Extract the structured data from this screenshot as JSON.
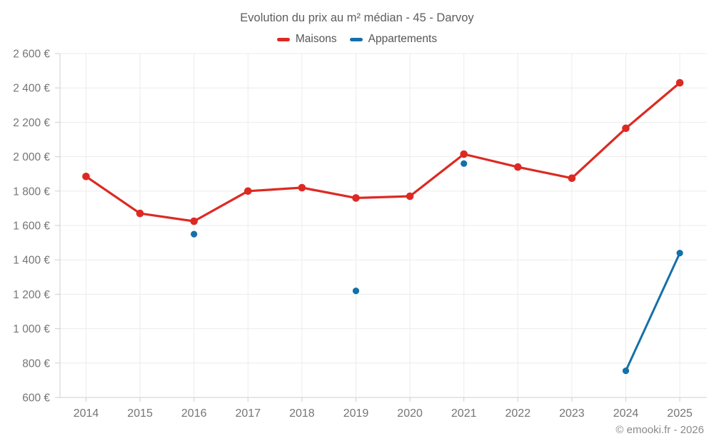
{
  "chart": {
    "title": "Evolution du prix au m² médian - 45 - Darvoy",
    "footer": "© emooki.fr - 2026"
  },
  "chart_data": {
    "type": "line",
    "title": "Evolution du prix au m² médian - 45 - Darvoy",
    "categories": [
      "2014",
      "2015",
      "2016",
      "2017",
      "2018",
      "2019",
      "2020",
      "2021",
      "2022",
      "2023",
      "2024",
      "2025"
    ],
    "series": [
      {
        "name": "Maisons",
        "color": "#dc2a23",
        "values": [
          1885,
          1670,
          1625,
          1800,
          1820,
          1760,
          1770,
          2015,
          1940,
          1875,
          2165,
          2430
        ]
      },
      {
        "name": "Appartements",
        "color": "#1470a8",
        "values": [
          null,
          null,
          1550,
          null,
          null,
          1220,
          null,
          1960,
          null,
          null,
          755,
          1440
        ]
      }
    ],
    "ylabel": "",
    "xlabel": "",
    "ylim": [
      600,
      2600
    ],
    "ytick_step": 200,
    "ytick_labels": [
      "600 €",
      "800 €",
      "1 000 €",
      "1 200 €",
      "1 400 €",
      "1 600 €",
      "1 800 €",
      "2 000 €",
      "2 200 €",
      "2 400 €",
      "2 600 €"
    ],
    "currency_suffix": " €",
    "grid": true,
    "legend_position": "top",
    "colors": {
      "grid_line": "#ececec",
      "axis_line": "#cfcfcf",
      "tick_label": "#757575",
      "title_text": "#5d5d5d",
      "legend_text": "#555555",
      "footer_text": "#8a8a8a"
    }
  }
}
